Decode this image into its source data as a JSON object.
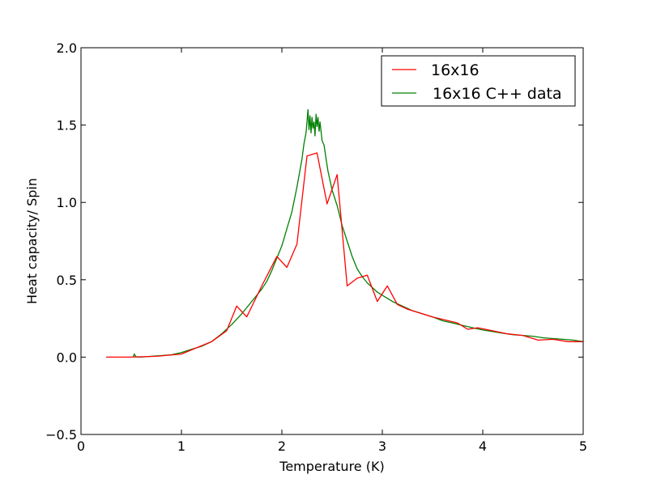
{
  "chart_data": {
    "type": "line",
    "title": "",
    "xlabel": "Temperature (K)",
    "ylabel": "Heat capacity/ Spin",
    "xlim": [
      0,
      5
    ],
    "ylim": [
      -0.5,
      2.0
    ],
    "xticks": [
      "0",
      "1",
      "2",
      "3",
      "4",
      "5"
    ],
    "yticks": [
      "−0.5",
      "0.0",
      "0.5",
      "1.0",
      "1.5",
      "2.0"
    ],
    "grid": false,
    "legend": "top-right",
    "series": [
      {
        "name": "16x16",
        "color": "#ff0000",
        "points": [
          [
            0.25,
            0.0
          ],
          [
            0.5,
            0.0
          ],
          [
            0.75,
            0.005
          ],
          [
            1.0,
            0.02
          ],
          [
            1.15,
            0.06
          ],
          [
            1.3,
            0.1
          ],
          [
            1.45,
            0.17
          ],
          [
            1.55,
            0.33
          ],
          [
            1.65,
            0.26
          ],
          [
            1.8,
            0.46
          ],
          [
            1.95,
            0.65
          ],
          [
            2.05,
            0.58
          ],
          [
            2.15,
            0.73
          ],
          [
            2.25,
            1.3
          ],
          [
            2.35,
            1.32
          ],
          [
            2.45,
            0.99
          ],
          [
            2.55,
            1.18
          ],
          [
            2.65,
            0.46
          ],
          [
            2.75,
            0.51
          ],
          [
            2.85,
            0.53
          ],
          [
            2.95,
            0.36
          ],
          [
            3.05,
            0.46
          ],
          [
            3.15,
            0.34
          ],
          [
            3.25,
            0.31
          ],
          [
            3.5,
            0.26
          ],
          [
            3.75,
            0.22
          ],
          [
            3.85,
            0.18
          ],
          [
            3.95,
            0.19
          ],
          [
            4.1,
            0.17
          ],
          [
            4.25,
            0.15
          ],
          [
            4.4,
            0.14
          ],
          [
            4.55,
            0.11
          ],
          [
            4.7,
            0.115
          ],
          [
            4.85,
            0.1
          ],
          [
            5.0,
            0.1
          ]
        ]
      },
      {
        "name": "16x16 C++ data",
        "color": "#008000",
        "points": [
          [
            0.52,
            0.0
          ],
          [
            0.53,
            0.02
          ],
          [
            0.55,
            0.0
          ],
          [
            0.6,
            0.0
          ],
          [
            0.7,
            0.005
          ],
          [
            0.8,
            0.01
          ],
          [
            0.9,
            0.015
          ],
          [
            1.0,
            0.03
          ],
          [
            1.1,
            0.05
          ],
          [
            1.2,
            0.07
          ],
          [
            1.3,
            0.1
          ],
          [
            1.4,
            0.15
          ],
          [
            1.5,
            0.21
          ],
          [
            1.6,
            0.28
          ],
          [
            1.7,
            0.36
          ],
          [
            1.8,
            0.44
          ],
          [
            1.85,
            0.49
          ],
          [
            1.9,
            0.56
          ],
          [
            1.95,
            0.64
          ],
          [
            2.0,
            0.72
          ],
          [
            2.05,
            0.83
          ],
          [
            2.1,
            0.94
          ],
          [
            2.15,
            1.1
          ],
          [
            2.2,
            1.28
          ],
          [
            2.22,
            1.38
          ],
          [
            2.24,
            1.45
          ],
          [
            2.25,
            1.52
          ],
          [
            2.26,
            1.6
          ],
          [
            2.27,
            1.47
          ],
          [
            2.28,
            1.56
          ],
          [
            2.29,
            1.45
          ],
          [
            2.3,
            1.55
          ],
          [
            2.31,
            1.48
          ],
          [
            2.32,
            1.52
          ],
          [
            2.33,
            1.43
          ],
          [
            2.34,
            1.57
          ],
          [
            2.35,
            1.49
          ],
          [
            2.36,
            1.55
          ],
          [
            2.37,
            1.46
          ],
          [
            2.38,
            1.52
          ],
          [
            2.4,
            1.4
          ],
          [
            2.42,
            1.37
          ],
          [
            2.44,
            1.28
          ],
          [
            2.46,
            1.2
          ],
          [
            2.5,
            1.08
          ],
          [
            2.55,
            0.98
          ],
          [
            2.6,
            0.85
          ],
          [
            2.65,
            0.75
          ],
          [
            2.7,
            0.65
          ],
          [
            2.75,
            0.57
          ],
          [
            2.8,
            0.52
          ],
          [
            2.85,
            0.48
          ],
          [
            2.9,
            0.45
          ],
          [
            2.95,
            0.42
          ],
          [
            3.0,
            0.4
          ],
          [
            3.1,
            0.36
          ],
          [
            3.2,
            0.33
          ],
          [
            3.3,
            0.3
          ],
          [
            3.4,
            0.28
          ],
          [
            3.5,
            0.26
          ],
          [
            3.6,
            0.235
          ],
          [
            3.7,
            0.22
          ],
          [
            3.8,
            0.205
          ],
          [
            3.9,
            0.19
          ],
          [
            4.0,
            0.175
          ],
          [
            4.1,
            0.165
          ],
          [
            4.2,
            0.155
          ],
          [
            4.3,
            0.145
          ],
          [
            4.4,
            0.14
          ],
          [
            4.5,
            0.135
          ],
          [
            4.6,
            0.125
          ],
          [
            4.7,
            0.12
          ],
          [
            4.8,
            0.115
          ],
          [
            4.9,
            0.11
          ],
          [
            5.0,
            0.1
          ]
        ]
      }
    ]
  }
}
